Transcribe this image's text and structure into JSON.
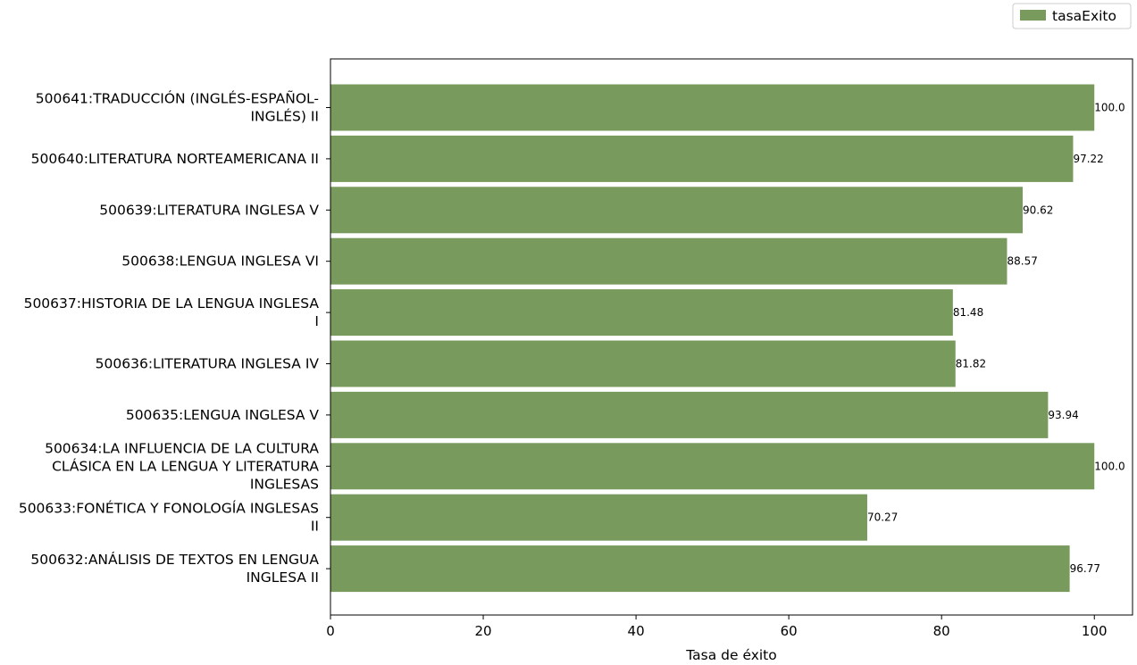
{
  "chart_data": {
    "type": "bar",
    "orientation": "horizontal",
    "categories": [
      "500641:TRADUCCIÓN (INGLÉS-ESPAÑOL-\nINGLÉS) II",
      "500640:LITERATURA NORTEAMERICANA II",
      "500639:LITERATURA INGLESA V",
      "500638:LENGUA INGLESA VI",
      "500637:HISTORIA DE LA LENGUA INGLESA\nI",
      "500636:LITERATURA INGLESA IV",
      "500635:LENGUA INGLESA V",
      "500634:LA INFLUENCIA DE LA CULTURA\nCLÁSICA EN LA LENGUA Y LITERATURA\nINGLESAS",
      "500633:FONÉTICA Y FONOLOGÍA INGLESAS\nII",
      "500632:ANÁLISIS DE TEXTOS EN LENGUA\nINGLESA II"
    ],
    "series": [
      {
        "name": "tasaExito",
        "values": [
          100.0,
          97.22,
          90.62,
          88.57,
          81.48,
          81.82,
          93.94,
          100.0,
          70.27,
          96.77
        ],
        "value_labels": [
          "100.0",
          "97.22",
          "90.62",
          "88.57",
          "81.48",
          "81.82",
          "93.94",
          "100.0",
          "70.27",
          "96.77"
        ]
      }
    ],
    "xlabel": "Tasa de éxito",
    "ylabel": "",
    "xlim": [
      0,
      105
    ],
    "xticks": [
      0,
      20,
      40,
      60,
      80,
      100
    ],
    "xtick_labels": [
      "0",
      "20",
      "40",
      "60",
      "80",
      "100"
    ],
    "grid": false,
    "legend": "top-right",
    "bar_color": "#789b5d"
  }
}
